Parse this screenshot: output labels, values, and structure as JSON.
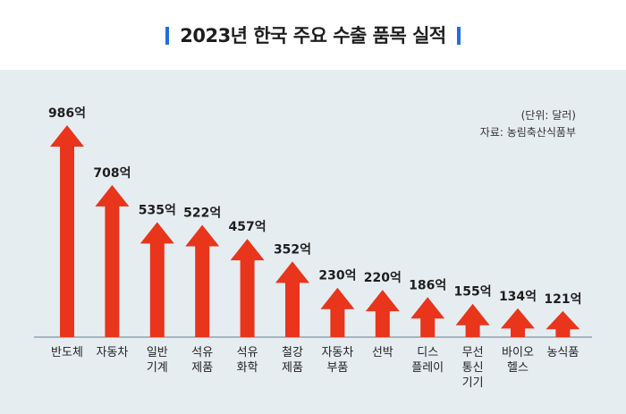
{
  "chart_data": {
    "type": "bar",
    "title": "2023년 한국 주요 수출 품목 실적",
    "unit_note": "(단위: 달러)",
    "source_note": "자료: 농림축산식품부",
    "categories": [
      [
        "반도체"
      ],
      [
        "자동차"
      ],
      [
        "일반",
        "기계"
      ],
      [
        "석유",
        "제품"
      ],
      [
        "석유",
        "화학"
      ],
      [
        "철강",
        "제품"
      ],
      [
        "자동차",
        "부품"
      ],
      [
        "선박"
      ],
      [
        "디스",
        "플레이"
      ],
      [
        "무선",
        "통신",
        "기기"
      ],
      [
        "바이오",
        "헬스"
      ],
      [
        "농식품"
      ]
    ],
    "values": [
      986,
      708,
      535,
      522,
      457,
      352,
      230,
      220,
      186,
      155,
      134,
      121
    ],
    "value_labels": [
      "986억",
      "708억",
      "535억",
      "522억",
      "457억",
      "352억",
      "230억",
      "220억",
      "186억",
      "155억",
      "134억",
      "121억"
    ],
    "colors": {
      "bar": "#e8351c",
      "title_accent": "#1f6fde",
      "background": "#e6edf1",
      "baseline": "#8fa3b1"
    }
  }
}
